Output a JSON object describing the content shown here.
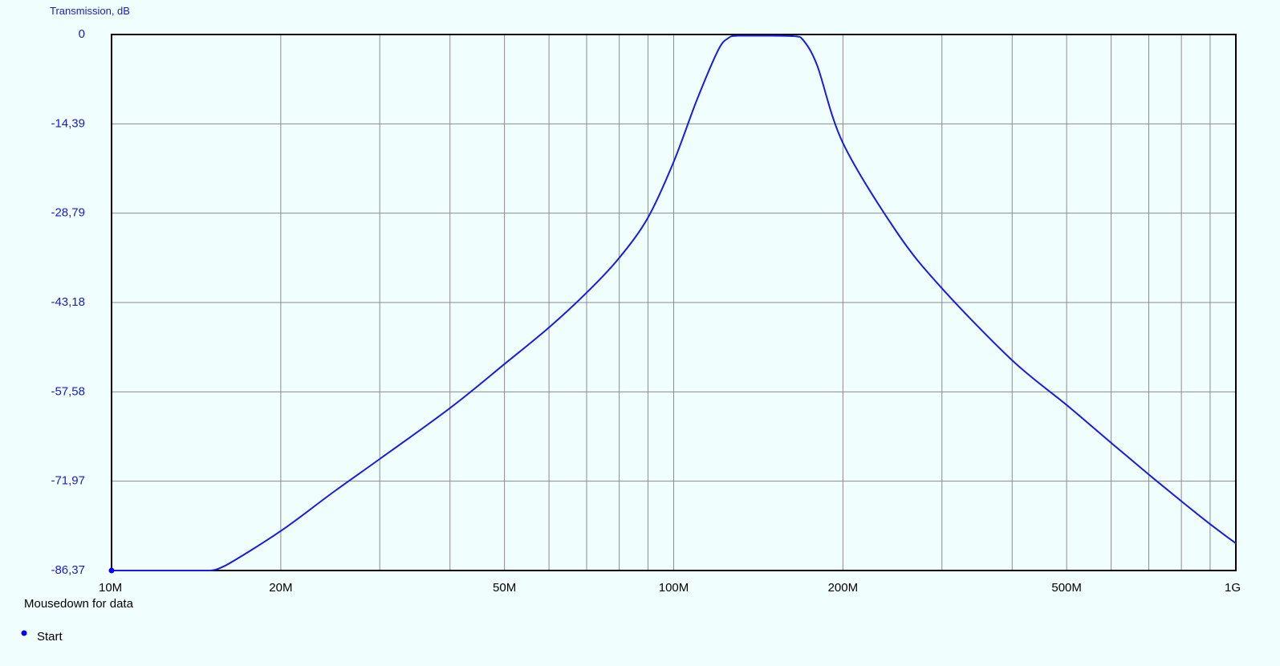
{
  "chart_data": {
    "type": "line",
    "xscale": "log",
    "ylabel": "Transmission, dB",
    "xlabel": "",
    "xlim": [
      10000000,
      1000000000
    ],
    "ylim": [
      -86.37,
      0
    ],
    "yticks": [
      "0",
      "-14,39",
      "-28,79",
      "-43,18",
      "-57,58",
      "-71,97",
      "-86,37"
    ],
    "xtick_labels": [
      {
        "value": 10000000,
        "label": "10M"
      },
      {
        "value": 20000000,
        "label": "20M"
      },
      {
        "value": 50000000,
        "label": "50M"
      },
      {
        "value": 100000000,
        "label": "100M"
      },
      {
        "value": 200000000,
        "label": "200M"
      },
      {
        "value": 500000000,
        "label": "500M"
      },
      {
        "value": 1000000000,
        "label": "1G"
      }
    ],
    "grid": true,
    "line_color": "#1a1ae6",
    "series": [
      {
        "x": [
          10000000,
          14000000,
          15000000,
          16000000,
          20000000,
          25000000,
          30000000,
          40000000,
          50000000,
          60000000,
          70000000,
          80000000,
          90000000,
          100000000,
          110000000,
          120000000,
          125000000,
          130000000,
          150000000,
          165000000,
          170000000,
          180000000,
          200000000,
          250000000,
          300000000,
          400000000,
          500000000,
          600000000,
          700000000,
          800000000,
          900000000,
          1000000000
        ],
        "y": [
          -86.37,
          -86.37,
          -86.37,
          -85.5,
          -80.0,
          -73.5,
          -68.4,
          -60.2,
          -53.1,
          -47.2,
          -41.6,
          -36.0,
          -29.5,
          -20.5,
          -10.5,
          -2.5,
          -0.6,
          -0.2,
          -0.2,
          -0.3,
          -0.9,
          -5.0,
          -17.5,
          -32.0,
          -40.9,
          -52.5,
          -59.7,
          -65.8,
          -70.9,
          -75.2,
          -78.9,
          -82.0
        ]
      }
    ]
  },
  "info": {
    "mousedown": "Mousedown for data",
    "start": "Start"
  }
}
